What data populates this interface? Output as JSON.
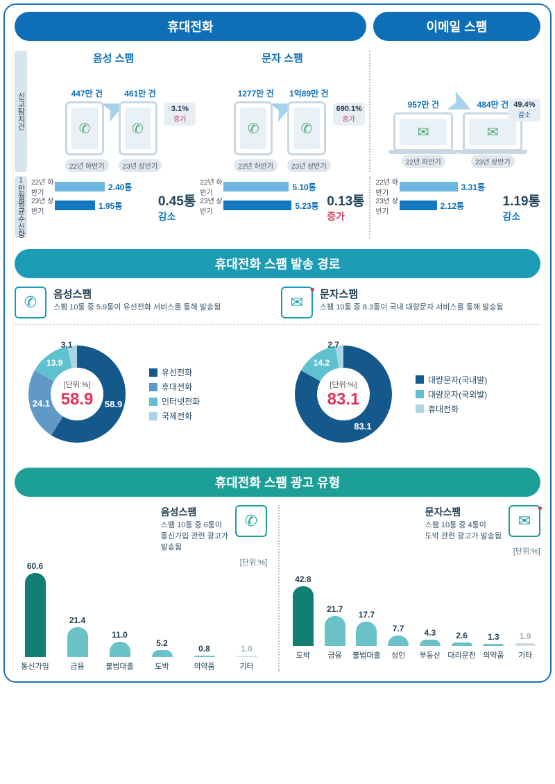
{
  "header": {
    "phone": "휴대전화",
    "email": "이메일 스팸"
  },
  "section1": {
    "rowLabels": {
      "reports": "신고탐지건",
      "receive": "1인월평균수신량"
    },
    "subheaders": {
      "voice": "음성 스팸",
      "text": "문자 스팸"
    },
    "cells": {
      "voice": {
        "v1": "447만 건",
        "v2": "461만 건",
        "l1": "22년 하반기",
        "l2": "23년 상반기",
        "pct": "3.1%",
        "dir": "증가",
        "dirClass": "inc"
      },
      "text": {
        "v1": "1277만 건",
        "v2": "1억89만 건",
        "l1": "22년 하반기",
        "l2": "23년 상반기",
        "pct": "690.1%",
        "dir": "증가",
        "dirClass": "inc"
      },
      "email": {
        "v1": "957만 건",
        "v2": "484만 건",
        "l1": "22년 하반기",
        "l2": "23년 상반기",
        "pct": "49.4%",
        "dir": "감소",
        "dirClass": "dec"
      }
    },
    "bars": {
      "voice": {
        "h1": "22년\n하반기",
        "v1": "2.40통",
        "w1": 72,
        "h2": "23년\n상반기",
        "v2": "1.95통",
        "w2": 58,
        "delta": "0.45통",
        "dtext": "감소",
        "dcls": "dec"
      },
      "text": {
        "h1": "22년\n하반기",
        "v1": "5.10통",
        "w1": 94,
        "h2": "23년\n상반기",
        "v2": "5.23통",
        "w2": 98,
        "delta": "0.13통",
        "dtext": "증가",
        "dcls": "inc"
      },
      "email": {
        "h1": "22년\n하반기",
        "v1": "3.31통",
        "w1": 84,
        "h2": "23년\n상반기",
        "v2": "2.12통",
        "w2": 54,
        "delta": "1.19통",
        "dtext": "감소",
        "dcls": "dec"
      }
    }
  },
  "section2": {
    "title": "휴대전화 스팸 발송 경로",
    "left": {
      "title": "음성스팸",
      "desc": "스팸 10통 중 5.9통이 유선전화 서비스를 통해 발송됨",
      "unit": "[단위:%]",
      "big": "58.9",
      "slices": [
        {
          "v": 58.9,
          "c": "#15588c",
          "lbl": "58.9"
        },
        {
          "v": 24.1,
          "c": "#6098c6",
          "lbl": "24.1"
        },
        {
          "v": 13.9,
          "c": "#5fc1cf",
          "lbl": "13.9"
        },
        {
          "v": 3.1,
          "c": "#a9d5e6",
          "lbl": "3.1"
        }
      ],
      "legend": [
        {
          "c": "#15588c",
          "t": "유선전화"
        },
        {
          "c": "#6098c6",
          "t": "휴대전화"
        },
        {
          "c": "#5fc1cf",
          "t": "인터넷전화"
        },
        {
          "c": "#a9d5e6",
          "t": "국제전화"
        }
      ]
    },
    "right": {
      "title": "문자스팸",
      "desc": "스팸 10통 중 8.3통이 국내 대량문자 서비스를 통해 발송됨",
      "unit": "[단위:%]",
      "big": "83.1",
      "slices": [
        {
          "v": 83.1,
          "c": "#15588c",
          "lbl": "83.1"
        },
        {
          "v": 14.2,
          "c": "#5fc1cf",
          "lbl": "14.2"
        },
        {
          "v": 2.7,
          "c": "#a9d5e6",
          "lbl": "2.7"
        }
      ],
      "legend": [
        {
          "c": "#15588c",
          "t": "대량문자(국내발)"
        },
        {
          "c": "#5fc1cf",
          "t": "대량문자(국외발)"
        },
        {
          "c": "#a9d5e6",
          "t": "휴대전화"
        }
      ]
    }
  },
  "section3": {
    "title": "휴대전화 스팸 광고 유형",
    "unit": "[단위:%]",
    "left": {
      "title": "음성스팸",
      "desc": "스팸 10통 중 6통이\n통신가입 관련 광고가\n발송됨",
      "bars": [
        {
          "l": "통신가입",
          "v": 60.6,
          "c": "#137f74"
        },
        {
          "l": "금융",
          "v": 21.4,
          "c": "#6bc2c8"
        },
        {
          "l": "불법대출",
          "v": 11.0,
          "c": "#6bc2c8"
        },
        {
          "l": "도박",
          "v": 5.2,
          "c": "#6bc2c8"
        },
        {
          "l": "의약품",
          "v": 0.8,
          "c": "#6bc2c8"
        },
        {
          "l": "기타",
          "v": 1.0,
          "c": "#d1dde3",
          "dim": true
        }
      ]
    },
    "right": {
      "title": "문자스팸",
      "desc": "스팸 10통 중 4통이\n도박 관련 광고가 발송됨",
      "bars": [
        {
          "l": "도박",
          "v": 42.8,
          "c": "#137f74"
        },
        {
          "l": "금융",
          "v": 21.7,
          "c": "#6bc2c8"
        },
        {
          "l": "불법대출",
          "v": 17.7,
          "c": "#6bc2c8"
        },
        {
          "l": "성인",
          "v": 7.7,
          "c": "#6bc2c8"
        },
        {
          "l": "부동산",
          "v": 4.3,
          "c": "#6bc2c8"
        },
        {
          "l": "대리운전",
          "v": 2.6,
          "c": "#6bc2c8"
        },
        {
          "l": "의약품",
          "v": 1.3,
          "c": "#6bc2c8"
        },
        {
          "l": "기타",
          "v": 1.9,
          "c": "#d1dde3",
          "dim": true
        }
      ]
    },
    "maxH": 130,
    "maxV": 65
  }
}
